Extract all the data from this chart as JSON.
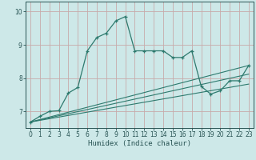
{
  "xlabel": "Humidex (Indice chaleur)",
  "background_color": "#cde8e8",
  "grid_color": "#b8d4d4",
  "line_color": "#2e7a6e",
  "xlim": [
    -0.5,
    23.5
  ],
  "ylim": [
    6.5,
    10.3
  ],
  "yticks": [
    7,
    8,
    9,
    10
  ],
  "xticks": [
    0,
    1,
    2,
    3,
    4,
    5,
    6,
    7,
    8,
    9,
    10,
    11,
    12,
    13,
    14,
    15,
    16,
    17,
    18,
    19,
    20,
    21,
    22,
    23
  ],
  "series_x": [
    0,
    1,
    2,
    3,
    4,
    5,
    6,
    7,
    8,
    9,
    10,
    11,
    12,
    13,
    14,
    15,
    16,
    17,
    18,
    19,
    20,
    21,
    22,
    23
  ],
  "series_y": [
    6.68,
    6.85,
    7.0,
    7.02,
    7.55,
    7.72,
    8.82,
    9.22,
    9.35,
    9.72,
    9.85,
    8.82,
    8.82,
    8.82,
    8.82,
    8.62,
    8.62,
    8.82,
    7.75,
    7.52,
    7.62,
    7.92,
    7.92,
    8.38
  ],
  "line1_x": [
    0,
    23
  ],
  "line1_y": [
    6.68,
    8.38
  ],
  "line2_x": [
    0,
    23
  ],
  "line2_y": [
    6.68,
    8.12
  ],
  "line3_x": [
    0,
    23
  ],
  "line3_y": [
    6.68,
    7.82
  ]
}
